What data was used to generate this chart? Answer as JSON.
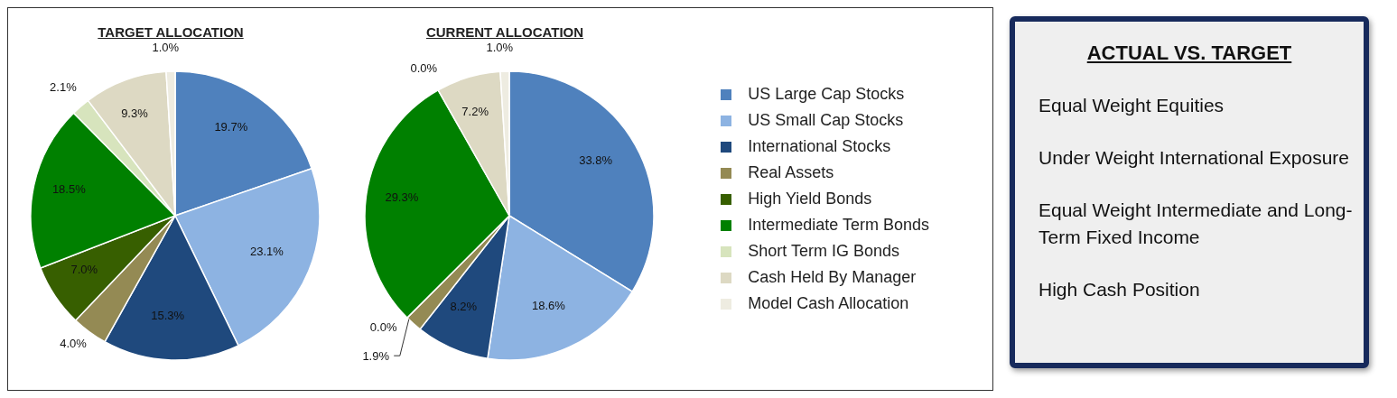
{
  "chart_data": [
    {
      "type": "pie",
      "categories": [
        "US Large Cap Stocks",
        "US Small Cap Stocks",
        "International Stocks",
        "Real Assets",
        "High Yield Bonds",
        "Intermediate Term Bonds",
        "Short Term IG Bonds",
        "Cash Held By Manager",
        "Model Cash Allocation"
      ],
      "colors": [
        "#4f81bd",
        "#8db3e2",
        "#1f497d",
        "#948a54",
        "#375f00",
        "#008000",
        "#d7e4bd",
        "#ddd9c3",
        "#eeece1"
      ],
      "series": [
        {
          "name": "TARGET ALLOCATION",
          "values": [
            19.7,
            23.1,
            15.3,
            4.0,
            7.0,
            18.5,
            2.1,
            9.3,
            1.0
          ],
          "value_labels": [
            "19.7%",
            "23.1%",
            "15.3%",
            "4.0%",
            "7.0%",
            "18.5%",
            "2.1%",
            "9.3%",
            "1.0%"
          ]
        },
        {
          "name": "CURRENT ALLOCATION",
          "values": [
            33.8,
            18.6,
            8.2,
            1.9,
            0.0,
            29.3,
            0.0,
            7.2,
            1.0
          ],
          "value_labels": [
            "33.8%",
            "18.6%",
            "8.2%",
            "1.9%",
            "0.0%",
            "29.3%",
            "0.0%",
            "7.2%",
            "1.0%"
          ]
        }
      ],
      "legend": "right"
    },
    {
      "type": "other",
      "title": "ACTUAL VS. TARGET",
      "annotations": [
        "Equal Weight Equities",
        "Under Weight International Exposure",
        "Equal Weight Intermediate and Long-Term Fixed Income",
        "High Cash Position"
      ]
    }
  ]
}
